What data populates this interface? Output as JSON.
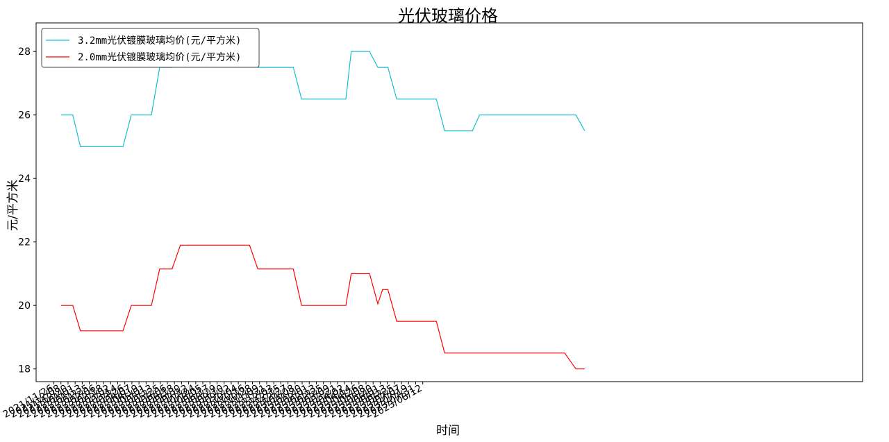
{
  "chart_data": {
    "type": "line",
    "title": "光伏玻璃价格",
    "xlabel": "时间",
    "ylabel": "元/平方米",
    "ylim": [
      17.6,
      28.9
    ],
    "yticks": [
      18,
      20,
      22,
      24,
      26,
      28
    ],
    "xlim_days": [
      -30,
      1368
    ],
    "x_ticks": [
      "2021/11/26",
      "2021/12/08",
      "2021/12/20",
      "2022/01/01",
      "2022/01/13",
      "2022/01/25",
      "2022/02/06",
      "2022/02/18",
      "2022/03/02",
      "2022/03/14",
      "2022/03/26",
      "2022/04/07",
      "2022/04/19",
      "2022/05/01",
      "2022/05/13",
      "2022/05/25",
      "2022/06/06",
      "2022/06/18",
      "2022/06/30",
      "2022/07/12",
      "2022/07/24",
      "2022/08/05",
      "2022/08/17",
      "2022/08/29",
      "2022/09/10",
      "2022/09/22",
      "2022/10/04",
      "2022/10/16",
      "2022/10/28",
      "2022/11/09",
      "2022/11/21",
      "2022/12/03",
      "2022/12/15",
      "2022/12/27",
      "2023/01/08",
      "2023/01/20",
      "2023/02/01",
      "2023/02/13",
      "2023/02/25",
      "2023/03/09",
      "2023/03/21",
      "2023/04/02",
      "2023/04/14",
      "2023/04/26",
      "2023/05/08",
      "2023/05/20",
      "2023/06/01",
      "2023/06/13",
      "2023/06/25",
      "2023/07/07",
      "2023/07/19",
      "2023/07/31",
      "2023/08/12"
    ],
    "grid": false,
    "legend_position": "top-left",
    "series": [
      {
        "name": "3.2mm光伏镀膜玻璃均价(元/平方米)",
        "color": "#17becf",
        "points": [
          [
            "2021/12/08",
            26.0
          ],
          [
            "2021/12/28",
            26.0
          ],
          [
            "2022/01/10",
            25.0
          ],
          [
            "2022/03/23",
            25.0
          ],
          [
            "2022/04/06",
            26.0
          ],
          [
            "2022/05/10",
            26.0
          ],
          [
            "2022/05/24",
            27.5
          ],
          [
            "2022/06/14",
            27.5
          ],
          [
            "2022/06/28",
            28.5
          ],
          [
            "2022/10/23",
            28.5
          ],
          [
            "2022/11/06",
            27.5
          ],
          [
            "2023/01/05",
            27.5
          ],
          [
            "2023/01/19",
            26.5
          ],
          [
            "2023/04/04",
            26.5
          ],
          [
            "2023/04/13",
            28.0
          ],
          [
            "2023/05/14",
            28.0
          ],
          [
            "2023/05/28",
            27.5
          ],
          [
            "2023/06/14",
            27.5
          ],
          [
            "2023/06/29",
            26.5
          ],
          [
            "2023/09/04",
            26.5
          ],
          [
            "2023/09/18",
            25.5
          ],
          [
            "2023/11/04",
            25.5
          ],
          [
            "2023/11/16",
            26.0
          ],
          [
            "2024/04/27",
            26.0
          ],
          [
            "2024/05/12",
            25.5
          ]
        ]
      },
      {
        "name": "2.0mm光伏镀膜玻璃均价(元/平方米)",
        "color": "#ff0000",
        "points": [
          [
            "2021/12/08",
            20.0
          ],
          [
            "2021/12/28",
            20.0
          ],
          [
            "2022/01/10",
            19.2
          ],
          [
            "2022/03/23",
            19.2
          ],
          [
            "2022/04/06",
            20.0
          ],
          [
            "2022/05/10",
            20.0
          ],
          [
            "2022/05/24",
            21.15
          ],
          [
            "2022/06/14",
            21.15
          ],
          [
            "2022/06/28",
            21.9
          ],
          [
            "2022/10/23",
            21.9
          ],
          [
            "2022/11/06",
            21.15
          ],
          [
            "2023/01/05",
            21.15
          ],
          [
            "2023/01/19",
            20.0
          ],
          [
            "2023/04/04",
            20.0
          ],
          [
            "2023/04/13",
            21.0
          ],
          [
            "2023/05/14",
            21.0
          ],
          [
            "2023/05/28",
            20.05
          ],
          [
            "2023/06/05",
            20.5
          ],
          [
            "2023/06/14",
            20.5
          ],
          [
            "2023/06/29",
            19.5
          ],
          [
            "2023/09/04",
            19.5
          ],
          [
            "2023/09/18",
            18.5
          ],
          [
            "2024/04/08",
            18.5
          ],
          [
            "2024/04/27",
            18.0
          ],
          [
            "2024/05/12",
            18.0
          ]
        ]
      }
    ]
  }
}
